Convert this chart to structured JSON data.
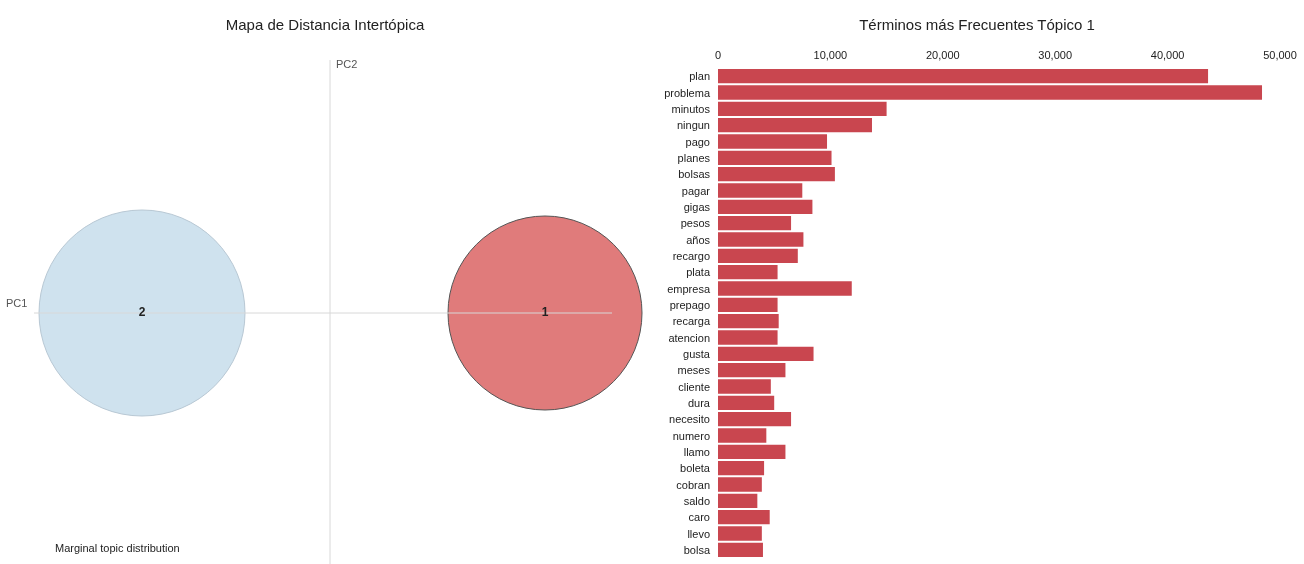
{
  "chart_data": [
    {
      "type": "other",
      "title": "Mapa de Distancia Intertópica",
      "xlabel": "PC1",
      "ylabel": "PC2",
      "annotations": [
        "1",
        "2",
        "Marginal topic distribution"
      ]
    },
    {
      "type": "bar",
      "orientation": "horizontal",
      "title": "Términos más Frecuentes Tópico 1",
      "categories": [
        "plan",
        "problema",
        "minutos",
        "ningun",
        "pago",
        "planes",
        "bolsas",
        "pagar",
        "gigas",
        "pesos",
        "años",
        "recargo",
        "plata",
        "empresa",
        "prepago",
        "recarga",
        "atencion",
        "gusta",
        "meses",
        "cliente",
        "dura",
        "necesito",
        "numero",
        "llamo",
        "boleta",
        "cobran",
        "saldo",
        "caro",
        "llevo",
        "bolsa"
      ],
      "values": [
        43600,
        48400,
        15000,
        13700,
        9700,
        10100,
        10400,
        7500,
        8400,
        6500,
        7600,
        7100,
        5300,
        11900,
        5300,
        5400,
        5300,
        8500,
        6000,
        4700,
        5000,
        6500,
        4300,
        6000,
        4100,
        3900,
        3500,
        4600,
        3900,
        4000
      ],
      "color": "#c9464f",
      "xlim": [
        0,
        50000
      ],
      "xticks": [
        0,
        {
          "value": 10000,
          "label": "10,000"
        },
        {
          "value": 20000,
          "label": "20,000"
        },
        {
          "value": 30000,
          "label": "30,000"
        },
        {
          "value": 40000,
          "label": "40,000"
        },
        {
          "value": 50000,
          "label": "50,000"
        }
      ]
    }
  ]
}
